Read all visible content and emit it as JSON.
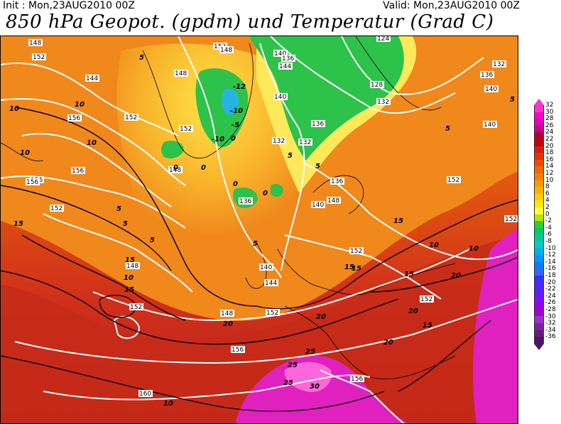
{
  "header": {
    "init_text": "Init : Mon,23AUG2010 00Z",
    "valid_text": "Valid: Mon,23AUG2010 00Z",
    "title": "850 hPa Geopot. (gpdm) und Temperatur (Grad C)"
  },
  "colorbar": {
    "labels": [
      "32",
      "30",
      "28",
      "26",
      "24",
      "22",
      "20",
      "18",
      "16",
      "14",
      "12",
      "10",
      "8",
      "6",
      "4",
      "2",
      "0",
      "-2",
      "-4",
      "-6",
      "-8",
      "-10",
      "-12",
      "-14",
      "-16",
      "-18",
      "-20",
      "-22",
      "-24",
      "-26",
      "-28",
      "-30",
      "-32",
      "-34",
      "-36"
    ],
    "colors": [
      "#ff33cc",
      "#ff00cc",
      "#e600b8",
      "#cc0099",
      "#b30033",
      "#cc0000",
      "#d91a1a",
      "#e63300",
      "#f04c00",
      "#f56600",
      "#f77f00",
      "#fa9900",
      "#fcb300",
      "#ffcc00",
      "#ffe600",
      "#ffff33",
      "#b3e600",
      "#33cc33",
      "#00cc66",
      "#00cc99",
      "#00cccc",
      "#00b3e6",
      "#0099ff",
      "#0080ff",
      "#3366ff",
      "#3333ff",
      "#4d26ff",
      "#661aff",
      "#800dff",
      "#9900e6",
      "#a600cc",
      "#9933cc",
      "#7a2699",
      "#661a80",
      "#4d1466"
    ]
  },
  "map": {
    "geopotential_labels": [
      "148",
      "152",
      "144",
      "156",
      "152",
      "148",
      "152",
      "156",
      "156",
      "152",
      "148",
      "152",
      "144",
      "140",
      "136",
      "140",
      "132",
      "124",
      "136",
      "128",
      "132",
      "136",
      "140",
      "140",
      "132",
      "136",
      "132",
      "152",
      "148",
      "152",
      "136",
      "140",
      "140",
      "144",
      "148",
      "152",
      "148",
      "152",
      "156",
      "156",
      "160",
      "152",
      "148",
      "152",
      "156"
    ],
    "temperature_labels": [
      "5",
      "10",
      "10",
      "10",
      "10",
      "15",
      "5",
      "5",
      "5",
      "5",
      "10",
      "15",
      "15",
      "-12",
      "-10",
      "-5",
      "-10",
      "0",
      "0",
      "0",
      "0",
      "0",
      "5",
      "5",
      "5",
      "5",
      "10",
      "15",
      "15",
      "10",
      "15",
      "20",
      "15",
      "20",
      "25",
      "25",
      "25",
      "30",
      "20",
      "20",
      "10",
      "15",
      "20"
    ]
  }
}
